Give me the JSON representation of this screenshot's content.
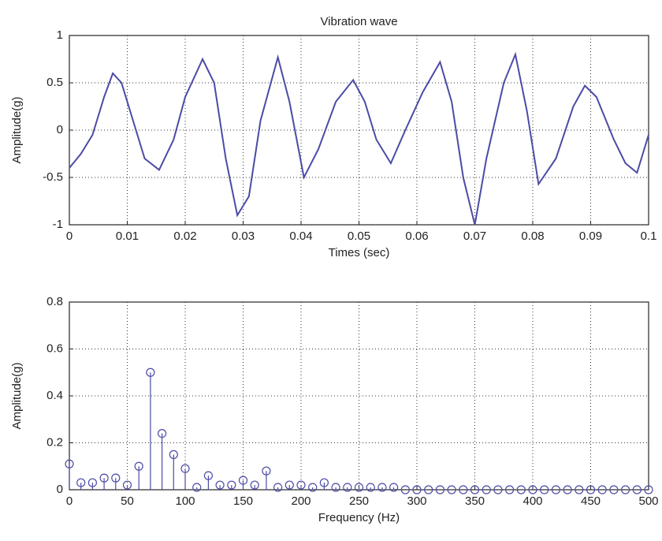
{
  "chart_data": [
    {
      "type": "line",
      "title": "Vibration wave",
      "x_label": "Times (sec)",
      "y_label": "Amplitude(g)",
      "color": "#4b4ba6",
      "grid": true,
      "x": [
        0,
        0.002,
        0.004,
        0.006,
        0.0075,
        0.009,
        0.011,
        0.013,
        0.0155,
        0.018,
        0.02,
        0.023,
        0.025,
        0.027,
        0.029,
        0.031,
        0.033,
        0.036,
        0.038,
        0.0405,
        0.043,
        0.046,
        0.049,
        0.051,
        0.053,
        0.0555,
        0.058,
        0.061,
        0.064,
        0.066,
        0.068,
        0.07,
        0.072,
        0.075,
        0.077,
        0.079,
        0.081,
        0.084,
        0.087,
        0.089,
        0.091,
        0.094,
        0.096,
        0.098,
        0.1
      ],
      "values": [
        -0.4,
        -0.25,
        -0.05,
        0.35,
        0.6,
        0.5,
        0.1,
        -0.3,
        -0.42,
        -0.1,
        0.35,
        0.75,
        0.5,
        -0.3,
        -0.9,
        -0.7,
        0.1,
        0.77,
        0.3,
        -0.5,
        -0.2,
        0.3,
        0.53,
        0.3,
        -0.1,
        -0.35,
        0.0,
        0.4,
        0.72,
        0.3,
        -0.5,
        -1.0,
        -0.3,
        0.5,
        0.8,
        0.2,
        -0.57,
        -0.3,
        0.25,
        0.47,
        0.35,
        -0.1,
        -0.35,
        -0.45,
        -0.05
      ],
      "xlim": [
        0,
        0.1
      ],
      "xticks": [
        0,
        0.01,
        0.02,
        0.03,
        0.04,
        0.05,
        0.06,
        0.07,
        0.08,
        0.09,
        0.1
      ],
      "ylim": [
        -1,
        1
      ],
      "yticks": [
        -1,
        -0.5,
        0,
        0.5,
        1
      ]
    },
    {
      "type": "stem",
      "x_label": "Frequency (Hz)",
      "y_label": "Amplitude(g)",
      "color": "#4b4ba6",
      "grid": true,
      "x": [
        0,
        10,
        20,
        30,
        40,
        50,
        60,
        70,
        80,
        90,
        100,
        110,
        120,
        130,
        140,
        150,
        160,
        170,
        180,
        190,
        200,
        210,
        220,
        230,
        240,
        250,
        260,
        270,
        280,
        290,
        300,
        310,
        320,
        330,
        340,
        350,
        360,
        370,
        380,
        390,
        400,
        410,
        420,
        430,
        440,
        450,
        460,
        470,
        480,
        490,
        500
      ],
      "values": [
        0.11,
        0.03,
        0.03,
        0.05,
        0.05,
        0.02,
        0.1,
        0.5,
        0.24,
        0.15,
        0.09,
        0.01,
        0.06,
        0.02,
        0.02,
        0.04,
        0.02,
        0.08,
        0.01,
        0.02,
        0.02,
        0.01,
        0.03,
        0.01,
        0.01,
        0.01,
        0.01,
        0.01,
        0.01,
        0,
        0,
        0,
        0,
        0,
        0,
        0,
        0,
        0,
        0,
        0,
        0,
        0,
        0,
        0,
        0,
        0,
        0,
        0,
        0,
        0,
        0
      ],
      "xlim": [
        0,
        500
      ],
      "xticks": [
        0,
        50,
        100,
        150,
        200,
        250,
        300,
        350,
        400,
        450,
        500
      ],
      "ylim": [
        0,
        0.8
      ],
      "yticks": [
        0,
        0.2,
        0.4,
        0.6,
        0.8
      ]
    }
  ]
}
